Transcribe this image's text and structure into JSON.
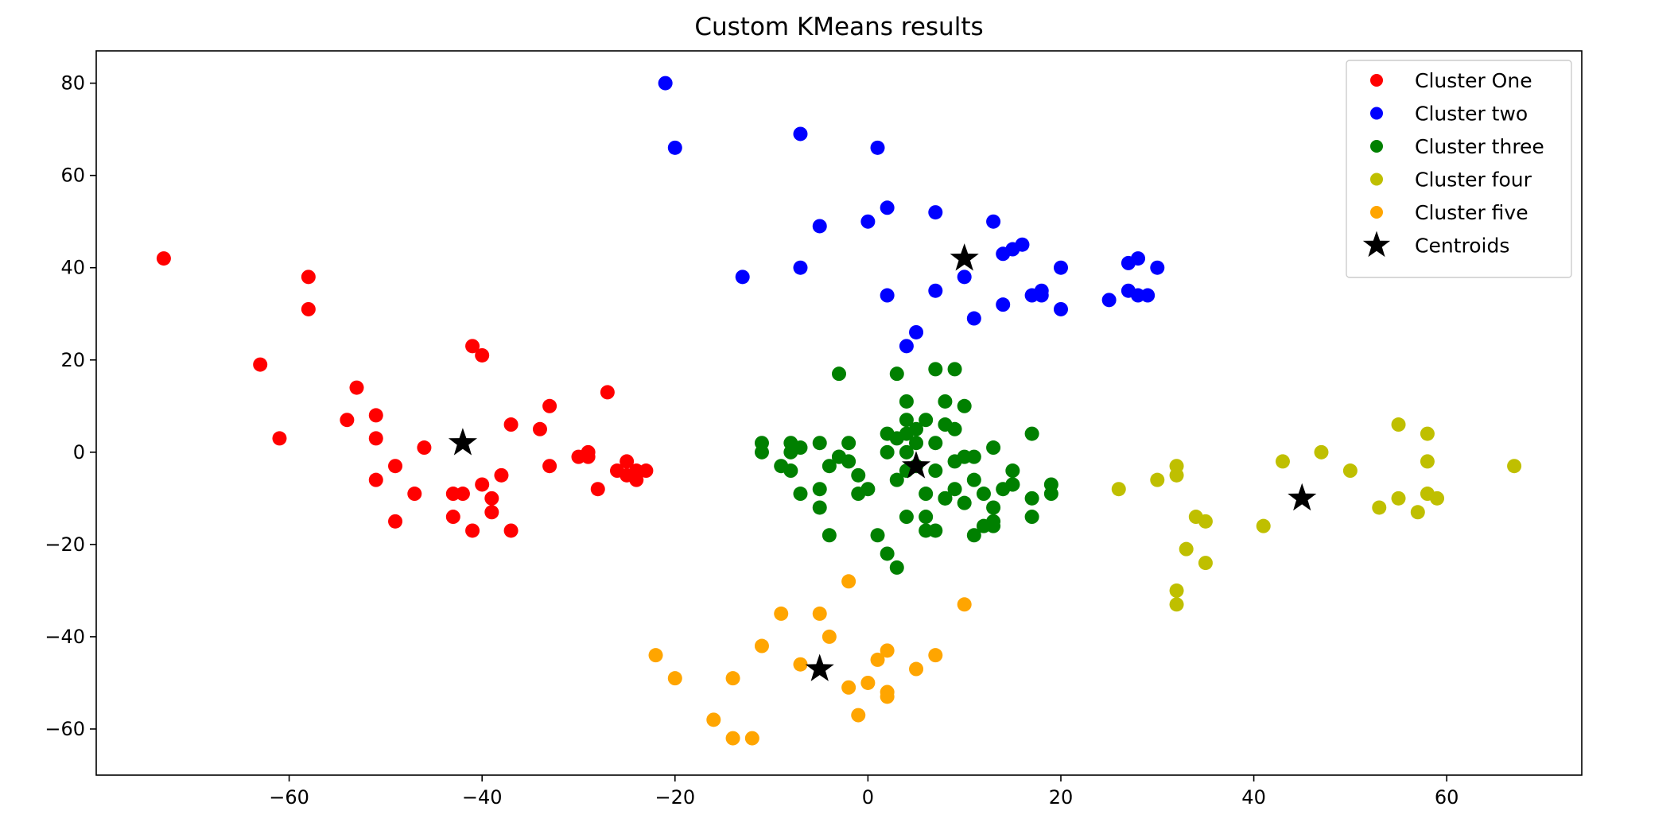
{
  "chart_data": {
    "type": "scatter",
    "title": "Custom KMeans results",
    "xlabel": "",
    "ylabel": "",
    "xlim": [
      -80,
      74
    ],
    "ylim": [
      -70,
      87
    ],
    "xticks": [
      -60,
      -40,
      -20,
      0,
      20,
      40,
      60
    ],
    "yticks": [
      -60,
      -40,
      -20,
      0,
      20,
      40,
      60,
      80
    ],
    "xtick_labels": [
      "−60",
      "−40",
      "−20",
      "0",
      "20",
      "40",
      "60"
    ],
    "ytick_labels": [
      "−60",
      "−40",
      "−20",
      "0",
      "20",
      "40",
      "60",
      "80"
    ],
    "grid": false,
    "legend_position": "top-right",
    "series": [
      {
        "name": "Cluster One",
        "color": "#ff0000",
        "marker": "circle",
        "points": [
          [
            -73,
            42
          ],
          [
            -58,
            38
          ],
          [
            -58,
            31
          ],
          [
            -63,
            19
          ],
          [
            -61,
            3
          ],
          [
            -53,
            14
          ],
          [
            -54,
            7
          ],
          [
            -51,
            8
          ],
          [
            -51,
            3
          ],
          [
            -51,
            -6
          ],
          [
            -49,
            -3
          ],
          [
            -49,
            -15
          ],
          [
            -47,
            -9
          ],
          [
            -46,
            1
          ],
          [
            -43,
            -14
          ],
          [
            -43,
            -9
          ],
          [
            -42,
            -9
          ],
          [
            -41,
            23
          ],
          [
            -40,
            21
          ],
          [
            -41,
            -17
          ],
          [
            -40,
            -7
          ],
          [
            -39,
            -10
          ],
          [
            -39,
            -13
          ],
          [
            -38,
            -5
          ],
          [
            -37,
            6
          ],
          [
            -37,
            -17
          ],
          [
            -34,
            5
          ],
          [
            -33,
            -3
          ],
          [
            -33,
            10
          ],
          [
            -30,
            -1
          ],
          [
            -29,
            0
          ],
          [
            -29,
            -1
          ],
          [
            -28,
            -8
          ],
          [
            -27,
            13
          ],
          [
            -26,
            -4
          ],
          [
            -25,
            -5
          ],
          [
            -25,
            -2
          ],
          [
            -24,
            -4
          ],
          [
            -24,
            -6
          ],
          [
            -23,
            -4
          ]
        ]
      },
      {
        "name": "Cluster two",
        "color": "#0000ff",
        "marker": "circle",
        "points": [
          [
            -21,
            80
          ],
          [
            -20,
            66
          ],
          [
            -13,
            38
          ],
          [
            -7,
            40
          ],
          [
            -7,
            69
          ],
          [
            -5,
            49
          ],
          [
            0,
            50
          ],
          [
            1,
            66
          ],
          [
            2,
            53
          ],
          [
            2,
            34
          ],
          [
            4,
            23
          ],
          [
            5,
            26
          ],
          [
            7,
            35
          ],
          [
            7,
            52
          ],
          [
            10,
            38
          ],
          [
            11,
            29
          ],
          [
            13,
            50
          ],
          [
            14,
            43
          ],
          [
            14,
            32
          ],
          [
            15,
            44
          ],
          [
            16,
            45
          ],
          [
            17,
            34
          ],
          [
            18,
            34
          ],
          [
            18,
            35
          ],
          [
            20,
            40
          ],
          [
            20,
            31
          ],
          [
            25,
            33
          ],
          [
            27,
            41
          ],
          [
            27,
            35
          ],
          [
            28,
            42
          ],
          [
            28,
            34
          ],
          [
            29,
            34
          ],
          [
            30,
            40
          ]
        ]
      },
      {
        "name": "Cluster three",
        "color": "#008000",
        "marker": "circle",
        "points": [
          [
            -11,
            2
          ],
          [
            -11,
            0
          ],
          [
            -9,
            -3
          ],
          [
            -8,
            0
          ],
          [
            -8,
            -4
          ],
          [
            -8,
            2
          ],
          [
            -7,
            -9
          ],
          [
            -7,
            1
          ],
          [
            -5,
            2
          ],
          [
            -5,
            -8
          ],
          [
            -5,
            -12
          ],
          [
            -4,
            -3
          ],
          [
            -4,
            -18
          ],
          [
            -3,
            17
          ],
          [
            -3,
            -1
          ],
          [
            -3,
            -1
          ],
          [
            -2,
            2
          ],
          [
            -2,
            -2
          ],
          [
            -1,
            -9
          ],
          [
            -1,
            -5
          ],
          [
            0,
            -8
          ],
          [
            1,
            -18
          ],
          [
            2,
            4
          ],
          [
            2,
            -22
          ],
          [
            2,
            0
          ],
          [
            3,
            -6
          ],
          [
            3,
            -25
          ],
          [
            3,
            17
          ],
          [
            3,
            3
          ],
          [
            4,
            0
          ],
          [
            4,
            4
          ],
          [
            4,
            -4
          ],
          [
            4,
            -14
          ],
          [
            4,
            7
          ],
          [
            4,
            11
          ],
          [
            5,
            2
          ],
          [
            5,
            5
          ],
          [
            5,
            -3
          ],
          [
            6,
            -9
          ],
          [
            6,
            -14
          ],
          [
            6,
            7
          ],
          [
            6,
            -17
          ],
          [
            7,
            2
          ],
          [
            7,
            18
          ],
          [
            7,
            -17
          ],
          [
            7,
            -4
          ],
          [
            8,
            11
          ],
          [
            8,
            6
          ],
          [
            8,
            -10
          ],
          [
            8,
            -10
          ],
          [
            9,
            18
          ],
          [
            9,
            5
          ],
          [
            9,
            -8
          ],
          [
            9,
            -2
          ],
          [
            10,
            10
          ],
          [
            10,
            -11
          ],
          [
            10,
            -1
          ],
          [
            11,
            -18
          ],
          [
            11,
            -6
          ],
          [
            11,
            -1
          ],
          [
            12,
            -16
          ],
          [
            12,
            -9
          ],
          [
            13,
            -15
          ],
          [
            13,
            -16
          ],
          [
            13,
            -12
          ],
          [
            13,
            1
          ],
          [
            14,
            -8
          ],
          [
            15,
            -7
          ],
          [
            15,
            -4
          ],
          [
            15,
            -7
          ],
          [
            17,
            4
          ],
          [
            17,
            -10
          ],
          [
            17,
            -14
          ],
          [
            19,
            -7
          ],
          [
            19,
            -9
          ]
        ]
      },
      {
        "name": "Cluster four",
        "color": "#bfbf00",
        "marker": "circle",
        "points": [
          [
            26,
            -8
          ],
          [
            30,
            -6
          ],
          [
            32,
            -3
          ],
          [
            32,
            -5
          ],
          [
            32,
            -30
          ],
          [
            32,
            -33
          ],
          [
            33,
            -21
          ],
          [
            34,
            -14
          ],
          [
            35,
            -15
          ],
          [
            35,
            -24
          ],
          [
            41,
            -16
          ],
          [
            43,
            -2
          ],
          [
            47,
            0
          ],
          [
            50,
            -4
          ],
          [
            53,
            -12
          ],
          [
            55,
            6
          ],
          [
            55,
            -10
          ],
          [
            57,
            -13
          ],
          [
            58,
            4
          ],
          [
            58,
            -2
          ],
          [
            58,
            -9
          ],
          [
            59,
            -10
          ],
          [
            67,
            -3
          ]
        ]
      },
      {
        "name": "Cluster five",
        "color": "#ffa500",
        "marker": "circle",
        "points": [
          [
            -22,
            -44
          ],
          [
            -20,
            -49
          ],
          [
            -16,
            -58
          ],
          [
            -14,
            -62
          ],
          [
            -14,
            -49
          ],
          [
            -12,
            -62
          ],
          [
            -11,
            -42
          ],
          [
            -9,
            -35
          ],
          [
            -7,
            -46
          ],
          [
            -5,
            -35
          ],
          [
            -4,
            -40
          ],
          [
            -2,
            -51
          ],
          [
            -2,
            -28
          ],
          [
            -1,
            -57
          ],
          [
            0,
            -50
          ],
          [
            1,
            -45
          ],
          [
            2,
            -43
          ],
          [
            2,
            -52
          ],
          [
            2,
            -53
          ],
          [
            5,
            -47
          ],
          [
            7,
            -44
          ],
          [
            10,
            -33
          ]
        ]
      },
      {
        "name": "Centroids",
        "color": "#000000",
        "marker": "star",
        "points": [
          [
            -42,
            2
          ],
          [
            10,
            42
          ],
          [
            5,
            -3
          ],
          [
            45,
            -10
          ],
          [
            -5,
            -47
          ]
        ]
      }
    ]
  }
}
